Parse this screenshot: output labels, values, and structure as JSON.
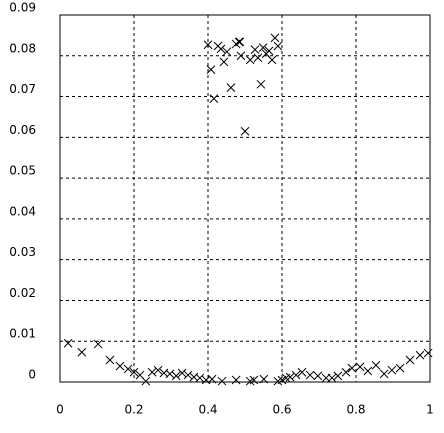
{
  "chart_data": {
    "type": "scatter",
    "color": "#000000",
    "grid": true,
    "xlim": [
      0,
      1
    ],
    "xticks": [
      0,
      0.2,
      0.4,
      0.6,
      0.8,
      1
    ],
    "ylim": [
      0,
      0.09
    ],
    "yticks": [
      0,
      0.01,
      0.02,
      0.03,
      0.04,
      0.05,
      0.06,
      0.07,
      0.08,
      0.09
    ],
    "x": [
      0.4,
      0.408,
      0.416,
      0.427,
      0.435,
      0.443,
      0.451,
      0.462,
      0.476,
      0.484,
      0.486,
      0.489,
      0.5,
      0.514,
      0.527,
      0.535,
      0.543,
      0.549,
      0.557,
      0.565,
      0.573,
      0.581,
      0.589,
      0.022,
      0.059,
      0.103,
      0.135,
      0.162,
      0.184,
      0.2,
      0.216,
      0.232,
      0.249,
      0.265,
      0.281,
      0.297,
      0.314,
      0.33,
      0.346,
      0.362,
      0.378,
      0.395,
      0.411,
      0.438,
      0.476,
      0.514,
      0.524,
      0.551,
      0.589,
      0.6,
      0.611,
      0.622,
      0.638,
      0.654,
      0.676,
      0.697,
      0.719,
      0.735,
      0.751,
      0.773,
      0.789,
      0.811,
      0.832,
      0.854,
      0.876,
      0.897,
      0.919,
      0.946,
      0.973,
      0.995
    ],
    "values": [
      0.0827,
      0.0766,
      0.0695,
      0.0824,
      0.0817,
      0.0785,
      0.081,
      0.0722,
      0.0829,
      0.0834,
      0.0834,
      0.08,
      0.0615,
      0.079,
      0.0815,
      0.0795,
      0.073,
      0.082,
      0.0805,
      0.0812,
      0.079,
      0.0844,
      0.0824,
      0.0095,
      0.0073,
      0.0093,
      0.0054,
      0.0039,
      0.0032,
      0.0024,
      0.0017,
      0.0002,
      0.0024,
      0.0029,
      0.0022,
      0.002,
      0.0015,
      0.0022,
      0.0017,
      0.0012,
      0.001,
      0.0005,
      0.0007,
      0.0002,
      0.0005,
      0.0002,
      0.0005,
      0.0007,
      0.0002,
      0.0005,
      0.001,
      0.0012,
      0.0017,
      0.0024,
      0.0017,
      0.0015,
      0.001,
      0.001,
      0.0015,
      0.0024,
      0.0034,
      0.0037,
      0.0027,
      0.0041,
      0.002,
      0.0029,
      0.0034,
      0.0054,
      0.0066,
      0.0071
    ]
  }
}
